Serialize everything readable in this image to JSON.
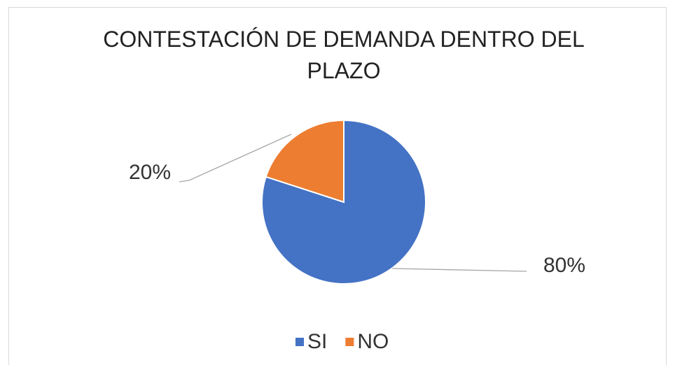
{
  "chart_data": {
    "type": "pie",
    "title": "CONTESTACIÓN DE DEMANDA DENTRO DEL PLAZO",
    "categories": [
      "SI",
      "NO"
    ],
    "values": [
      80,
      20
    ],
    "value_labels": [
      "80%",
      "20%"
    ],
    "colors": [
      "#4472c4",
      "#ed7d31"
    ],
    "legend": "bottom"
  }
}
